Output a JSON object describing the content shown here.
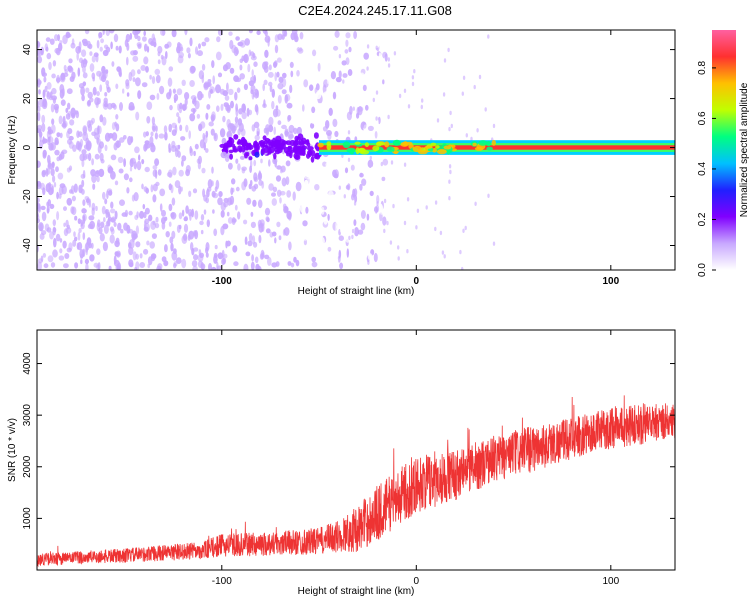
{
  "title": "C2E4.2024.245.17.11.G08",
  "chart_data": [
    {
      "type": "heatmap",
      "xlabel": "Height of straight line (km)",
      "ylabel": "Frequency (Hz)",
      "x_ticks": [
        -100,
        0,
        100
      ],
      "y_ticks": [
        -40,
        -20,
        0,
        20,
        40
      ],
      "xlim": [
        -195,
        133
      ],
      "ylim": [
        -50,
        48
      ],
      "colorbar": {
        "label": "Normalized spectral amplitude",
        "ticks": [
          0.0,
          0.2,
          0.4,
          0.6,
          0.8
        ],
        "range": [
          0,
          0.95
        ],
        "colors": [
          "#ffffff",
          "#c8a8ff",
          "#8000ff",
          "#2020ff",
          "#00c0ff",
          "#00ff80",
          "#c0ff00",
          "#ffc000",
          "#ff3030",
          "#ff60a0"
        ]
      },
      "features": [
        {
          "description_of_region": "noise",
          "x_range": [
            -195,
            -40
          ],
          "freq_range": [
            -50,
            48
          ],
          "amplitude": 0.1
        },
        {
          "description_of_region": "onset",
          "x_range": [
            -100,
            -50
          ],
          "freq_range": [
            -5,
            5
          ],
          "amplitude": 0.3
        },
        {
          "description_of_region": "signal",
          "x_range": [
            -50,
            133
          ],
          "freq": 0,
          "amplitude": 0.85
        }
      ]
    },
    {
      "type": "line",
      "xlabel": "Height of straight line (km)",
      "ylabel": "SNR (10 * v/v)",
      "x_ticks": [
        -100,
        0,
        100
      ],
      "y_ticks": [
        1000,
        2000,
        3000,
        4000
      ],
      "xlim": [
        -195,
        133
      ],
      "ylim": [
        0,
        4650
      ],
      "color": "#ee3333",
      "trend": {
        "x": [
          -195,
          -150,
          -110,
          -100,
          -80,
          -50,
          -40,
          -30,
          -20,
          -10,
          0,
          20,
          40,
          60,
          80,
          100,
          120,
          133
        ],
        "y": [
          200,
          280,
          380,
          480,
          500,
          560,
          650,
          800,
          1100,
          1400,
          1650,
          1850,
          2150,
          2350,
          2550,
          2750,
          2850,
          2900
        ],
        "spread": [
          120,
          140,
          170,
          220,
          230,
          260,
          320,
          450,
          550,
          550,
          550,
          500,
          450,
          450,
          400,
          400,
          400,
          350
        ]
      }
    }
  ]
}
